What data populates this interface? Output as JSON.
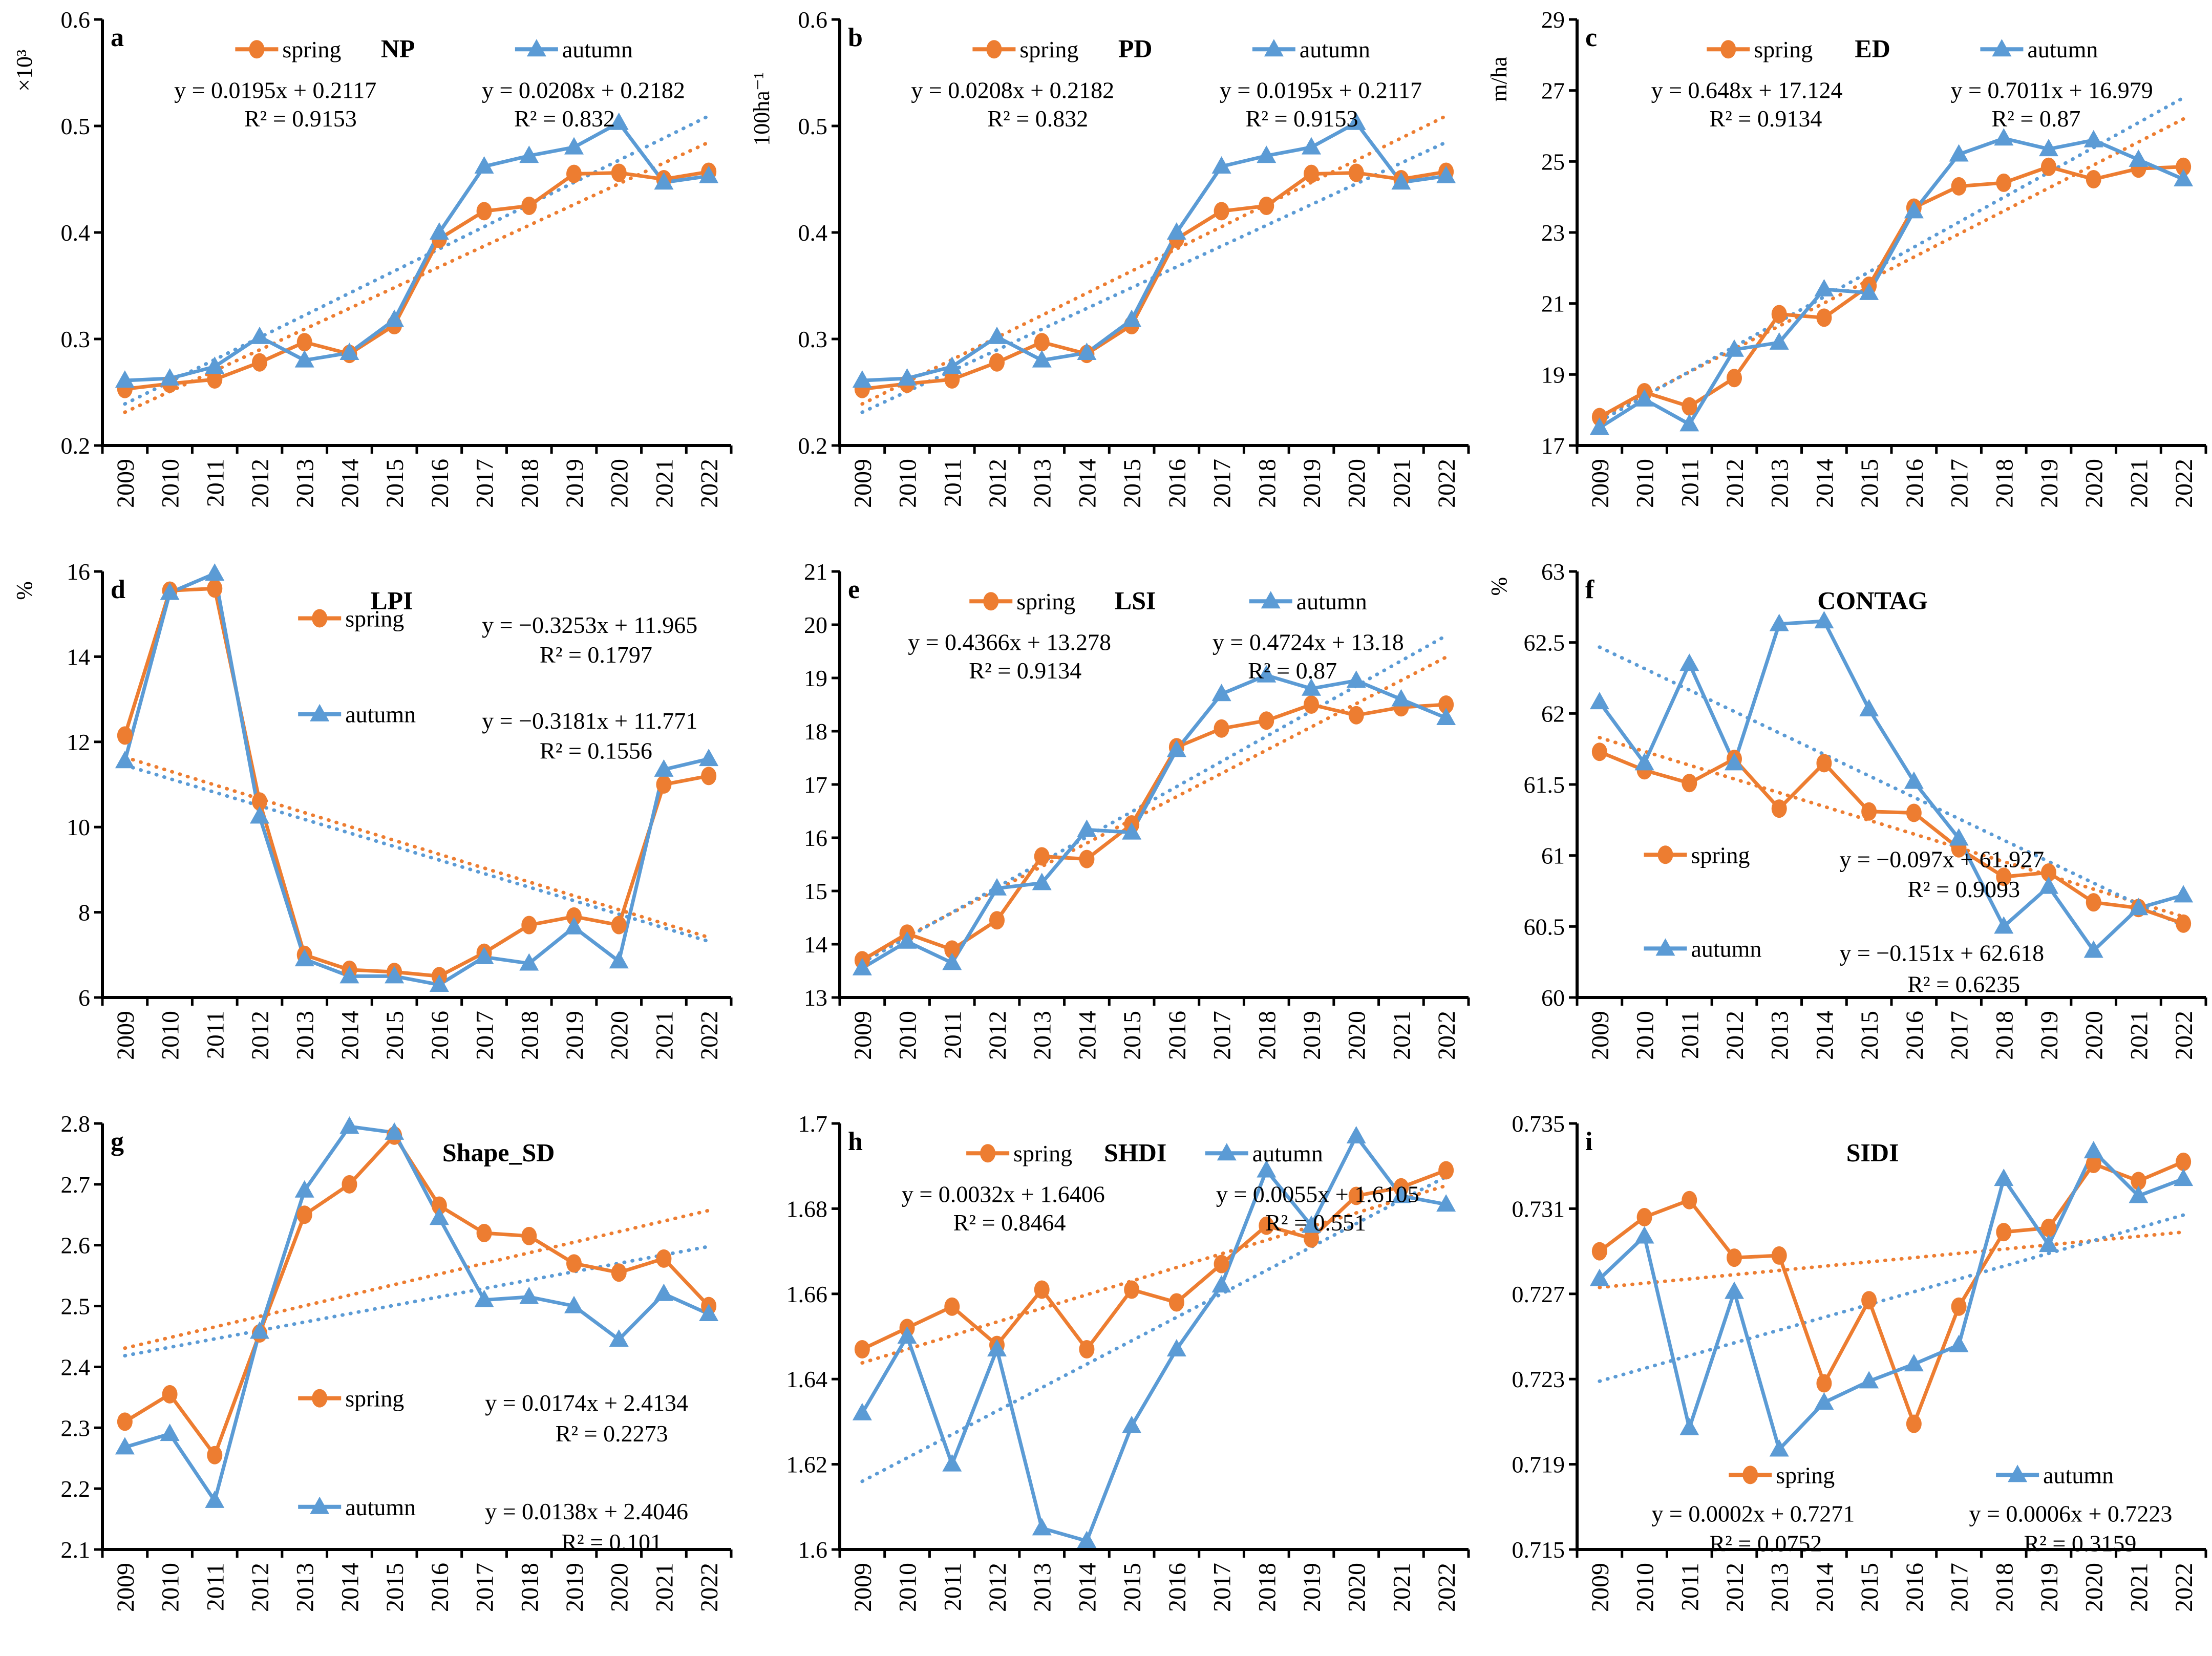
{
  "figure": {
    "legend_labels": {
      "spring": "spring",
      "autumn": "autumn"
    },
    "colors": {
      "spring": "#ED7D31",
      "autumn": "#5B9BD5",
      "axis": "#000000"
    }
  },
  "chart_data": [
    {
      "panel": "a",
      "type": "line",
      "title": "NP",
      "unit": "×10³",
      "categories": [
        "2009",
        "2010",
        "2011",
        "2012",
        "2013",
        "2014",
        "2015",
        "2016",
        "2017",
        "2018",
        "2019",
        "2020",
        "2021",
        "2022"
      ],
      "ylim": [
        0.2,
        0.6
      ],
      "ytick_values": [
        0.2,
        0.3,
        0.4,
        0.5,
        0.6
      ],
      "ytick_labels": [
        "0.2",
        "0.3",
        "0.4",
        "0.5",
        "0.6"
      ],
      "legend_position": "top",
      "series": [
        {
          "name": "spring",
          "values": [
            0.253,
            0.258,
            0.262,
            0.278,
            0.297,
            0.286,
            0.313,
            0.394,
            0.42,
            0.425,
            0.455,
            0.456,
            0.45,
            0.457
          ]
        },
        {
          "name": "autumn",
          "values": [
            0.261,
            0.263,
            0.274,
            0.302,
            0.28,
            0.287,
            0.318,
            0.4,
            0.462,
            0.472,
            0.48,
            0.503,
            0.447,
            0.453
          ]
        }
      ],
      "trendlines": [
        {
          "series": "spring",
          "slope": 0.0195,
          "intercept": 0.2117,
          "equation": "y = 0.0195x + 0.2117",
          "r2": "R² = 0.9153"
        },
        {
          "series": "autumn",
          "slope": 0.0208,
          "intercept": 0.2182,
          "equation": "y = 0.0208x + 0.2182",
          "r2": "R² = 0.832"
        }
      ]
    },
    {
      "panel": "b",
      "type": "line",
      "title": "PD",
      "unit": "100ha⁻¹",
      "categories": [
        "2009",
        "2010",
        "2011",
        "2012",
        "2013",
        "2014",
        "2015",
        "2016",
        "2017",
        "2018",
        "2019",
        "2020",
        "2021",
        "2022"
      ],
      "ylim": [
        0.2,
        0.6
      ],
      "ytick_values": [
        0.2,
        0.3,
        0.4,
        0.5,
        0.6
      ],
      "ytick_labels": [
        "0.2",
        "0.3",
        "0.4",
        "0.5",
        "0.6"
      ],
      "legend_position": "top",
      "series": [
        {
          "name": "spring",
          "values": [
            0.253,
            0.258,
            0.262,
            0.278,
            0.297,
            0.286,
            0.313,
            0.394,
            0.42,
            0.425,
            0.455,
            0.456,
            0.45,
            0.457
          ]
        },
        {
          "name": "autumn",
          "values": [
            0.261,
            0.263,
            0.274,
            0.302,
            0.28,
            0.287,
            0.318,
            0.4,
            0.462,
            0.472,
            0.48,
            0.503,
            0.447,
            0.453
          ]
        }
      ],
      "trendlines": [
        {
          "series": "spring",
          "slope": 0.0208,
          "intercept": 0.2182,
          "equation": "y = 0.0208x + 0.2182",
          "r2": "R² = 0.832"
        },
        {
          "series": "autumn",
          "slope": 0.0195,
          "intercept": 0.2117,
          "equation": "y = 0.0195x + 0.2117",
          "r2": "R² = 0.9153"
        }
      ]
    },
    {
      "panel": "c",
      "type": "line",
      "title": "ED",
      "unit": "m/ha",
      "categories": [
        "2009",
        "2010",
        "2011",
        "2012",
        "2013",
        "2014",
        "2015",
        "2016",
        "2017",
        "2018",
        "2019",
        "2020",
        "2021",
        "2022"
      ],
      "ylim": [
        17,
        29
      ],
      "ytick_values": [
        17,
        19,
        21,
        23,
        25,
        27,
        29
      ],
      "ytick_labels": [
        "17",
        "19",
        "21",
        "23",
        "25",
        "27",
        "29"
      ],
      "legend_position": "top",
      "series": [
        {
          "name": "spring",
          "values": [
            17.8,
            18.5,
            18.1,
            18.9,
            20.7,
            20.6,
            21.5,
            23.7,
            24.3,
            24.4,
            24.85,
            24.5,
            24.8,
            24.85
          ]
        },
        {
          "name": "autumn",
          "values": [
            17.5,
            18.3,
            17.6,
            19.7,
            19.9,
            21.4,
            21.3,
            23.6,
            25.2,
            25.65,
            25.35,
            25.6,
            25.05,
            24.5
          ]
        }
      ],
      "trendlines": [
        {
          "series": "spring",
          "slope": 0.648,
          "intercept": 17.124,
          "equation": "y = 0.648x + 17.124",
          "r2": "R² = 0.9134"
        },
        {
          "series": "autumn",
          "slope": 0.7011,
          "intercept": 16.979,
          "equation": "y = 0.7011x + 16.979",
          "r2": "R² = 0.87"
        }
      ]
    },
    {
      "panel": "d",
      "type": "line",
      "title": "LPI",
      "unit": "%",
      "categories": [
        "2009",
        "2010",
        "2011",
        "2012",
        "2013",
        "2014",
        "2015",
        "2016",
        "2017",
        "2018",
        "2019",
        "2020",
        "2021",
        "2022"
      ],
      "ylim": [
        6,
        16
      ],
      "ytick_values": [
        6,
        8,
        10,
        12,
        14,
        16
      ],
      "ytick_labels": [
        "6",
        "8",
        "10",
        "12",
        "14",
        "16"
      ],
      "legend_position": "upper-left-stacked",
      "series": [
        {
          "name": "spring",
          "values": [
            12.15,
            15.55,
            15.6,
            10.6,
            7.0,
            6.65,
            6.6,
            6.5,
            7.05,
            7.7,
            7.9,
            7.7,
            11.0,
            11.2
          ]
        },
        {
          "name": "autumn",
          "values": [
            11.55,
            15.5,
            15.95,
            10.25,
            6.9,
            6.5,
            6.5,
            6.3,
            6.95,
            6.8,
            7.65,
            6.85,
            11.35,
            11.6
          ]
        }
      ],
      "trendlines": [
        {
          "series": "spring",
          "slope": -0.3253,
          "intercept": 11.965,
          "equation": "y = −0.3253x + 11.965",
          "r2": "R² = 0.1797"
        },
        {
          "series": "autumn",
          "slope": -0.3181,
          "intercept": 11.771,
          "equation": "y = −0.3181x + 11.771",
          "r2": "R² = 0.1556"
        }
      ]
    },
    {
      "panel": "e",
      "type": "line",
      "title": "LSI",
      "unit": "",
      "categories": [
        "2009",
        "2010",
        "2011",
        "2012",
        "2013",
        "2014",
        "2015",
        "2016",
        "2017",
        "2018",
        "2019",
        "2020",
        "2021",
        "2022"
      ],
      "ylim": [
        13,
        21
      ],
      "ytick_values": [
        13,
        14,
        15,
        16,
        17,
        18,
        19,
        20,
        21
      ],
      "ytick_labels": [
        "13",
        "14",
        "15",
        "16",
        "17",
        "18",
        "19",
        "20",
        "21"
      ],
      "legend_position": "top",
      "series": [
        {
          "name": "spring",
          "values": [
            13.7,
            14.2,
            13.9,
            14.45,
            15.65,
            15.6,
            16.25,
            17.7,
            18.05,
            18.2,
            18.5,
            18.3,
            18.45,
            18.5
          ]
        },
        {
          "name": "autumn",
          "values": [
            13.55,
            14.05,
            13.65,
            15.05,
            15.15,
            16.15,
            16.1,
            17.65,
            18.7,
            19.05,
            18.8,
            18.95,
            18.6,
            18.25
          ]
        }
      ],
      "trendlines": [
        {
          "series": "spring",
          "slope": 0.4366,
          "intercept": 13.278,
          "equation": "y = 0.4366x + 13.278",
          "r2": "R² = 0.9134"
        },
        {
          "series": "autumn",
          "slope": 0.4724,
          "intercept": 13.18,
          "equation": "y = 0.4724x + 13.18",
          "r2": "R² = 0.87"
        }
      ]
    },
    {
      "panel": "f",
      "type": "line",
      "title": "CONTAG",
      "unit": "%",
      "categories": [
        "2009",
        "2010",
        "2011",
        "2012",
        "2013",
        "2014",
        "2015",
        "2016",
        "2017",
        "2018",
        "2019",
        "2020",
        "2021",
        "2022"
      ],
      "ylim": [
        60,
        63
      ],
      "ytick_values": [
        60,
        60.5,
        61,
        61.5,
        62,
        62.5,
        63
      ],
      "ytick_labels": [
        "60",
        "60.5",
        "61",
        "61.5",
        "62",
        "62.5",
        "63"
      ],
      "legend_position": "lower-left-stacked",
      "series": [
        {
          "name": "spring",
          "values": [
            61.73,
            61.6,
            61.51,
            61.68,
            61.33,
            61.65,
            61.31,
            61.3,
            61.05,
            60.85,
            60.88,
            60.67,
            60.63,
            60.52
          ]
        },
        {
          "name": "autumn",
          "values": [
            62.08,
            61.65,
            62.35,
            61.65,
            62.63,
            62.65,
            62.03,
            61.52,
            61.12,
            60.5,
            60.78,
            60.33,
            60.63,
            60.72
          ]
        }
      ],
      "trendlines": [
        {
          "series": "spring",
          "slope": -0.097,
          "intercept": 61.927,
          "equation": "y = −0.097x + 61.927",
          "r2": "R² = 0.9093"
        },
        {
          "series": "autumn",
          "slope": -0.151,
          "intercept": 62.618,
          "equation": "y = −0.151x + 62.618",
          "r2": "R² = 0.6235"
        }
      ]
    },
    {
      "panel": "g",
      "type": "line",
      "title": "Shape_SD",
      "unit": "",
      "categories": [
        "2009",
        "2010",
        "2011",
        "2012",
        "2013",
        "2014",
        "2015",
        "2016",
        "2017",
        "2018",
        "2019",
        "2020",
        "2021",
        "2022"
      ],
      "ylim": [
        2.1,
        2.8
      ],
      "ytick_values": [
        2.1,
        2.2,
        2.3,
        2.4,
        2.5,
        2.6,
        2.7,
        2.8
      ],
      "ytick_labels": [
        "2.1",
        "2.2",
        "2.3",
        "2.4",
        "2.5",
        "2.6",
        "2.7",
        "2.8"
      ],
      "legend_position": "lower-middle-stacked",
      "series": [
        {
          "name": "spring",
          "values": [
            2.31,
            2.355,
            2.255,
            2.455,
            2.65,
            2.7,
            2.78,
            2.665,
            2.62,
            2.615,
            2.57,
            2.555,
            2.578,
            2.5
          ]
        },
        {
          "name": "autumn",
          "values": [
            2.268,
            2.29,
            2.18,
            2.458,
            2.69,
            2.795,
            2.785,
            2.645,
            2.51,
            2.515,
            2.5,
            2.445,
            2.52,
            2.487
          ]
        }
      ],
      "trendlines": [
        {
          "series": "spring",
          "slope": 0.0174,
          "intercept": 2.4134,
          "equation": "y = 0.0174x + 2.4134",
          "r2": "R² = 0.2273"
        },
        {
          "series": "autumn",
          "slope": 0.0138,
          "intercept": 2.4046,
          "equation": "y = 0.0138x + 2.4046",
          "r2": "R² = 0.101"
        }
      ]
    },
    {
      "panel": "h",
      "type": "line",
      "title": "SHDI",
      "unit": "",
      "categories": [
        "2009",
        "2010",
        "2011",
        "2012",
        "2013",
        "2014",
        "2015",
        "2016",
        "2017",
        "2018",
        "2019",
        "2020",
        "2021",
        "2022"
      ],
      "ylim": [
        1.6,
        1.7
      ],
      "ytick_values": [
        1.6,
        1.62,
        1.64,
        1.66,
        1.68,
        1.7
      ],
      "ytick_labels": [
        "1.6",
        "1.62",
        "1.64",
        "1.66",
        "1.68",
        "1.7"
      ],
      "legend_position": "top",
      "series": [
        {
          "name": "spring",
          "values": [
            1.647,
            1.652,
            1.657,
            1.648,
            1.661,
            1.647,
            1.661,
            1.658,
            1.667,
            1.676,
            1.673,
            1.683,
            1.685,
            1.689
          ]
        },
        {
          "name": "autumn",
          "values": [
            1.632,
            1.65,
            1.62,
            1.647,
            1.605,
            1.602,
            1.629,
            1.647,
            1.662,
            1.689,
            1.676,
            1.697,
            1.683,
            1.681
          ]
        }
      ],
      "trendlines": [
        {
          "series": "spring",
          "slope": 0.0032,
          "intercept": 1.6406,
          "equation": "y = 0.0032x + 1.6406",
          "r2": "R² = 0.8464"
        },
        {
          "series": "autumn",
          "slope": 0.0055,
          "intercept": 1.6105,
          "equation": "y = 0.0055x + 1.6105",
          "r2": "R² = 0.551"
        }
      ]
    },
    {
      "panel": "i",
      "type": "line",
      "title": "SIDI",
      "unit": "",
      "categories": [
        "2009",
        "2010",
        "2011",
        "2012",
        "2013",
        "2014",
        "2015",
        "2016",
        "2017",
        "2018",
        "2019",
        "2020",
        "2021",
        "2022"
      ],
      "ylim": [
        0.715,
        0.735
      ],
      "ytick_values": [
        0.715,
        0.719,
        0.723,
        0.727,
        0.731,
        0.735
      ],
      "ytick_labels": [
        "0.715",
        "0.719",
        "0.723",
        "0.727",
        "0.731",
        "0.735"
      ],
      "legend_position": "bottom-center-stacked",
      "series": [
        {
          "name": "spring",
          "values": [
            0.729,
            0.7306,
            0.7314,
            0.7287,
            0.7288,
            0.7228,
            0.7267,
            0.7209,
            0.7264,
            0.7299,
            0.7301,
            0.7331,
            0.7323,
            0.7332
          ]
        },
        {
          "name": "autumn",
          "values": [
            0.7277,
            0.7297,
            0.7207,
            0.7271,
            0.7197,
            0.7219,
            0.7229,
            0.7237,
            0.7246,
            0.7324,
            0.7293,
            0.7337,
            0.7316,
            0.7324
          ]
        }
      ],
      "trendlines": [
        {
          "series": "spring",
          "slope": 0.0002,
          "intercept": 0.7271,
          "equation": "y = 0.0002x + 0.7271",
          "r2": "R² = 0.0752"
        },
        {
          "series": "autumn",
          "slope": 0.0006,
          "intercept": 0.7223,
          "equation": "y = 0.0006x + 0.7223",
          "r2": "R² = 0.3159"
        }
      ]
    }
  ]
}
